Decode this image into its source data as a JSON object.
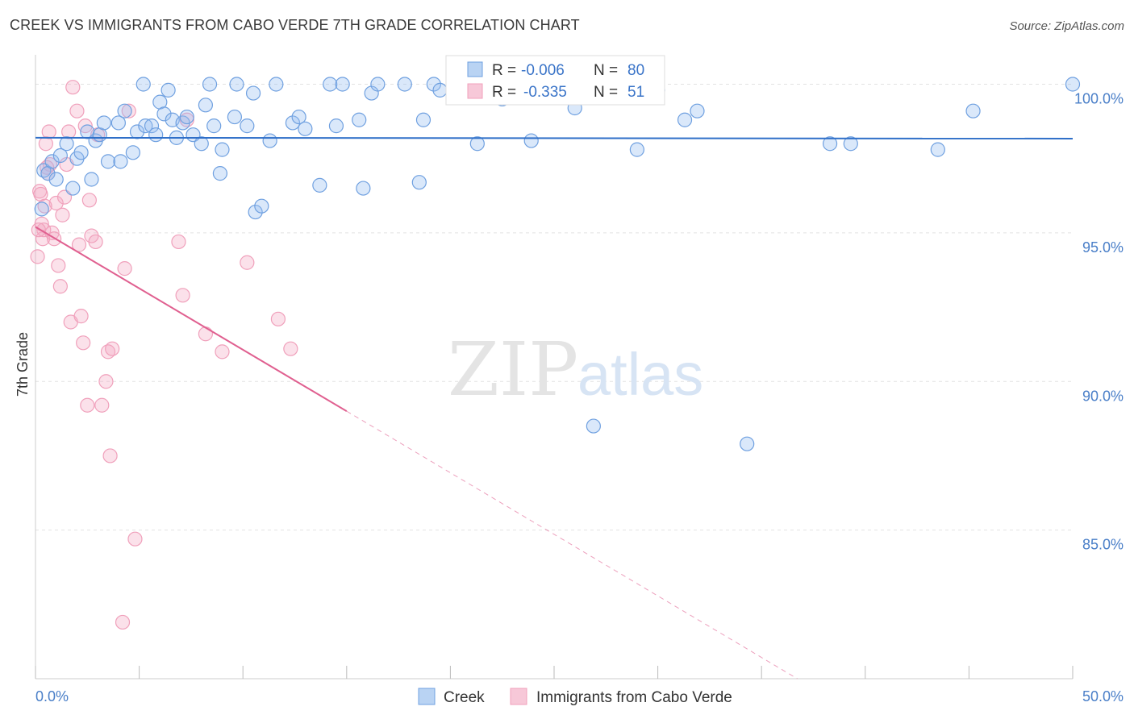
{
  "title": "CREEK VS IMMIGRANTS FROM CABO VERDE 7TH GRADE CORRELATION CHART",
  "source": "Source: ZipAtlas.com",
  "watermark": {
    "zip": "ZIP",
    "atlas": "atlas"
  },
  "chart_data": {
    "type": "scatter",
    "xlabel": "",
    "ylabel": "7th Grade",
    "xlim": [
      0,
      50
    ],
    "ylim": [
      80,
      100.8
    ],
    "x_tick_labels": [
      "0.0%",
      "50.0%"
    ],
    "y_tick_labels": [
      "85.0%",
      "90.0%",
      "95.0%",
      "100.0%"
    ],
    "y_ticks": [
      85,
      90,
      95,
      100
    ],
    "grid": true,
    "legend_position": "top-center",
    "colors": {
      "creek": "#6fa0e0",
      "creek_line": "#2f6fc8",
      "cabo": "#f0a0bb",
      "cabo_line": "#e06090"
    },
    "stats": [
      {
        "r_label": "R =",
        "r": "-0.006",
        "n_label": "N =",
        "n": "80"
      },
      {
        "r_label": "R =",
        "r": "-0.335",
        "n_label": "N =",
        "n": "51"
      }
    ],
    "series": [
      {
        "name": "Creek",
        "trend": {
          "x0": 0,
          "y0": 98.2,
          "x1": 50,
          "y1": 98.17
        },
        "points": [
          [
            0.3,
            95.8
          ],
          [
            0.4,
            97.1
          ],
          [
            0.6,
            97.0
          ],
          [
            0.8,
            97.4
          ],
          [
            1.0,
            96.8
          ],
          [
            1.2,
            97.6
          ],
          [
            1.5,
            98.0
          ],
          [
            1.8,
            96.5
          ],
          [
            2.0,
            97.5
          ],
          [
            2.2,
            97.7
          ],
          [
            2.5,
            98.4
          ],
          [
            2.7,
            96.8
          ],
          [
            2.9,
            98.1
          ],
          [
            3.1,
            98.3
          ],
          [
            3.3,
            98.7
          ],
          [
            3.5,
            97.4
          ],
          [
            4.0,
            98.7
          ],
          [
            4.1,
            97.4
          ],
          [
            4.3,
            99.1
          ],
          [
            4.7,
            97.7
          ],
          [
            4.9,
            98.4
          ],
          [
            5.2,
            100.0
          ],
          [
            5.3,
            98.6
          ],
          [
            5.6,
            98.6
          ],
          [
            5.8,
            98.3
          ],
          [
            6.0,
            99.4
          ],
          [
            6.2,
            99.0
          ],
          [
            6.4,
            99.8
          ],
          [
            6.6,
            98.8
          ],
          [
            6.8,
            98.2
          ],
          [
            7.1,
            98.7
          ],
          [
            7.3,
            98.9
          ],
          [
            7.6,
            98.3
          ],
          [
            8.0,
            98.0
          ],
          [
            8.2,
            99.3
          ],
          [
            8.4,
            100.0
          ],
          [
            8.6,
            98.6
          ],
          [
            8.9,
            97.0
          ],
          [
            9.0,
            97.8
          ],
          [
            9.6,
            98.9
          ],
          [
            9.7,
            100.0
          ],
          [
            10.2,
            98.6
          ],
          [
            10.5,
            99.7
          ],
          [
            10.6,
            95.7
          ],
          [
            10.9,
            95.9
          ],
          [
            11.3,
            98.1
          ],
          [
            11.6,
            100.0
          ],
          [
            12.4,
            98.7
          ],
          [
            12.7,
            98.9
          ],
          [
            13.0,
            98.5
          ],
          [
            13.7,
            96.6
          ],
          [
            14.2,
            100.0
          ],
          [
            14.5,
            98.6
          ],
          [
            14.8,
            100.0
          ],
          [
            15.6,
            98.8
          ],
          [
            15.8,
            96.5
          ],
          [
            16.2,
            99.7
          ],
          [
            16.5,
            100.0
          ],
          [
            17.8,
            100.0
          ],
          [
            18.5,
            96.7
          ],
          [
            18.7,
            98.8
          ],
          [
            19.2,
            100.0
          ],
          [
            19.5,
            99.8
          ],
          [
            20.2,
            100.0
          ],
          [
            21.3,
            98.0
          ],
          [
            22.5,
            99.5
          ],
          [
            22.8,
            100.0
          ],
          [
            23.9,
            98.1
          ],
          [
            26.0,
            99.2
          ],
          [
            26.9,
            88.5
          ],
          [
            29.0,
            97.8
          ],
          [
            30.0,
            99.8
          ],
          [
            31.3,
            98.8
          ],
          [
            31.9,
            99.1
          ],
          [
            34.3,
            87.9
          ],
          [
            38.3,
            98.0
          ],
          [
            39.3,
            98.0
          ],
          [
            43.5,
            97.8
          ],
          [
            45.2,
            99.1
          ],
          [
            50.0,
            100.0
          ]
        ]
      },
      {
        "name": "Immigrants from Cabo Verde",
        "trend": {
          "x0": 0,
          "y0": 95.2,
          "x1": 15.0,
          "y1": 89.0
        },
        "trend_ext": {
          "x0": 15.0,
          "y0": 89.0,
          "x1": 50.0,
          "y1": 74.5
        },
        "points": [
          [
            0.2,
            96.4
          ],
          [
            0.3,
            95.3
          ],
          [
            0.35,
            94.8
          ],
          [
            0.4,
            95.1
          ],
          [
            0.5,
            98.0
          ],
          [
            0.6,
            97.0
          ],
          [
            0.7,
            97.3
          ],
          [
            0.8,
            95.0
          ],
          [
            0.9,
            94.8
          ],
          [
            1.0,
            96.0
          ],
          [
            1.1,
            93.9
          ],
          [
            1.2,
            93.2
          ],
          [
            1.3,
            95.6
          ],
          [
            1.4,
            96.2
          ],
          [
            1.5,
            97.3
          ],
          [
            1.6,
            98.4
          ],
          [
            1.7,
            92.0
          ],
          [
            1.8,
            99.9
          ],
          [
            2.0,
            99.1
          ],
          [
            2.1,
            94.6
          ],
          [
            2.2,
            92.2
          ],
          [
            2.3,
            91.3
          ],
          [
            2.4,
            98.6
          ],
          [
            2.5,
            89.2
          ],
          [
            2.6,
            96.1
          ],
          [
            2.7,
            94.9
          ],
          [
            2.9,
            94.7
          ],
          [
            3.0,
            98.3
          ],
          [
            3.2,
            89.2
          ],
          [
            3.4,
            90.0
          ],
          [
            3.5,
            91.0
          ],
          [
            3.6,
            87.5
          ],
          [
            3.7,
            91.1
          ],
          [
            4.2,
            81.9
          ],
          [
            4.3,
            93.8
          ],
          [
            4.5,
            99.1
          ],
          [
            4.8,
            84.7
          ],
          [
            6.9,
            94.7
          ],
          [
            7.1,
            92.9
          ],
          [
            7.3,
            98.8
          ],
          [
            8.2,
            91.6
          ],
          [
            9.0,
            91.0
          ],
          [
            10.2,
            94.0
          ],
          [
            11.7,
            92.1
          ],
          [
            12.3,
            91.1
          ],
          [
            0.1,
            94.2
          ],
          [
            0.15,
            95.1
          ],
          [
            0.25,
            96.3
          ],
          [
            0.45,
            95.9
          ],
          [
            0.55,
            97.2
          ],
          [
            0.65,
            98.4
          ]
        ]
      }
    ]
  },
  "legend": {
    "items": [
      {
        "label": "Creek"
      },
      {
        "label": "Immigrants from Cabo Verde"
      }
    ]
  }
}
